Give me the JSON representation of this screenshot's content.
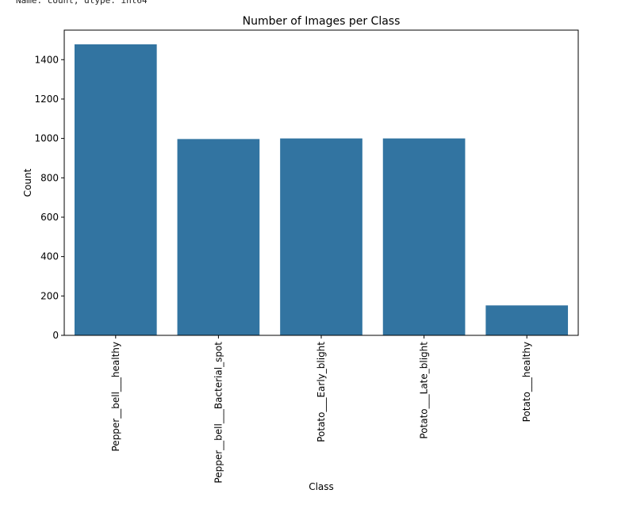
{
  "console": {
    "text": "Name: count, dtype: int64"
  },
  "chart_data": {
    "type": "bar",
    "title": "Number of Images per Class",
    "xlabel": "Class",
    "ylabel": "Count",
    "categories": [
      "Pepper__bell___healthy",
      "Pepper__bell___Bacterial_spot",
      "Potato___Early_blight",
      "Potato___Late_blight",
      "Potato___healthy"
    ],
    "values": [
      1478,
      997,
      1000,
      1000,
      152
    ],
    "ylim": [
      0,
      1550
    ],
    "yticks": [
      0,
      200,
      400,
      600,
      800,
      1000,
      1200,
      1400
    ],
    "bar_color": "#3274a1",
    "grid": false,
    "legend": "none"
  }
}
